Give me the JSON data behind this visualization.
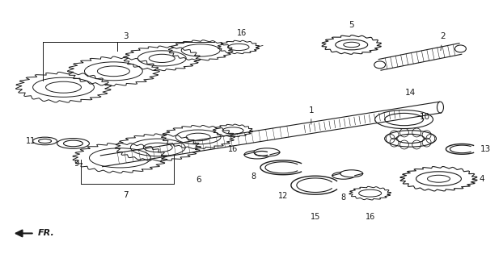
{
  "background_color": "#ffffff",
  "line_color": "#1a1a1a",
  "fig_width": 6.22,
  "fig_height": 3.2,
  "dpi": 100,
  "fr_label": "FR."
}
